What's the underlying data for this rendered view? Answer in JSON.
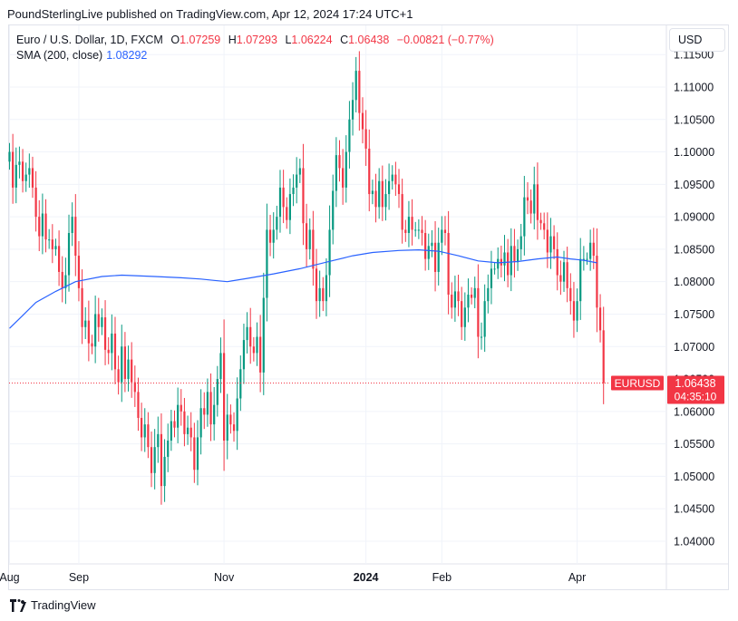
{
  "header": {
    "publisher_line": "PoundSterlingLive published on TradingView.com, Apr 12, 2024 17:24 UTC+1"
  },
  "legend": {
    "symbol": "Euro / U.S. Dollar, 1D, FXCM",
    "o_label": "O",
    "o_value": "1.07259",
    "h_label": "H",
    "h_value": "1.07293",
    "l_label": "L",
    "l_value": "1.06224",
    "c_label": "C",
    "c_value": "1.06438",
    "change": "−0.00821 (−0.77%)",
    "sma_label": "SMA (200, close)",
    "sma_value": "1.08292"
  },
  "currency": "USD",
  "footer": {
    "brand": "TradingView"
  },
  "colors": {
    "up": "#089981",
    "down": "#f23645",
    "sma": "#2962ff",
    "grid": "#f0f3fa"
  },
  "chart_data": {
    "type": "candlestick",
    "symbol": "EURUSD",
    "ylim": [
      1.0365,
      1.1195
    ],
    "y_ticks": [
      1.04,
      1.045,
      1.05,
      1.055,
      1.06,
      1.065,
      1.07,
      1.075,
      1.08,
      1.085,
      1.09,
      1.095,
      1.1,
      1.105,
      1.11,
      1.115
    ],
    "y_tick_labels": [
      "1.04000",
      "1.04500",
      "1.05000",
      "1.05500",
      "1.06000",
      "1.06500",
      "1.07000",
      "1.07500",
      "1.08000",
      "1.08500",
      "1.09000",
      "1.09500",
      "1.10000",
      "1.10500",
      "1.11000",
      "1.11500"
    ],
    "x_ticks": [
      {
        "label": "Aug",
        "day": 0,
        "bold": false
      },
      {
        "label": "Sep",
        "day": 21,
        "bold": false
      },
      {
        "label": "Nov",
        "day": 65,
        "bold": false
      },
      {
        "label": "2024",
        "day": 108,
        "bold": true
      },
      {
        "label": "Feb",
        "day": 131,
        "bold": false
      },
      {
        "label": "Apr",
        "day": 172,
        "bold": false
      }
    ],
    "last_price": "1.06438",
    "last_price_value": 1.06438,
    "countdown": "04:35:10",
    "closes": [
      1.1,
      1.0945,
      1.098,
      1.0985,
      1.0955,
      1.0965,
      1.0975,
      1.0945,
      1.09,
      1.087,
      1.0905,
      1.0865,
      1.0865,
      1.085,
      1.0855,
      1.0815,
      1.079,
      1.081,
      1.0875,
      1.09,
      1.084,
      1.079,
      1.073,
      1.074,
      1.0705,
      1.07,
      1.075,
      1.073,
      1.0745,
      1.0695,
      1.069,
      1.072,
      1.0665,
      1.0645,
      1.07,
      1.065,
      1.068,
      1.0645,
      1.063,
      1.059,
      1.056,
      1.058,
      1.0545,
      1.0505,
      1.0545,
      1.0565,
      1.0485,
      1.053,
      1.0555,
      1.0585,
      1.0575,
      1.061,
      1.06,
      1.0565,
      1.0575,
      1.056,
      1.051,
      1.056,
      1.0605,
      1.0595,
      1.063,
      1.058,
      1.061,
      1.065,
      1.069,
      1.0555,
      1.0595,
      1.058,
      1.057,
      1.062,
      1.0665,
      1.071,
      1.073,
      1.07,
      1.069,
      1.0715,
      1.066,
      1.0775,
      1.088,
      1.086,
      1.088,
      1.09,
      1.0945,
      1.0915,
      1.0895,
      1.0935,
      1.0945,
      1.0965,
      1.0975,
      1.089,
      1.085,
      1.088,
      1.082,
      1.077,
      1.079,
      1.077,
      1.081,
      1.088,
      1.094,
      1.0995,
      1.0975,
      1.0945,
      1.1,
      1.105,
      1.108,
      1.1125,
      1.106,
      1.1035,
      1.1005,
      1.0935,
      1.094,
      1.0915,
      1.0955,
      1.0915,
      1.0935,
      1.0955,
      1.0965,
      1.095,
      1.0935,
      1.088,
      1.0875,
      1.09,
      1.088,
      1.088,
      1.088,
      1.0875,
      1.0835,
      1.0855,
      1.086,
      1.0815,
      1.086,
      1.088,
      1.0875,
      1.078,
      1.076,
      1.0785,
      1.077,
      1.073,
      1.076,
      1.078,
      1.0775,
      1.079,
      1.0715,
      1.0715,
      1.077,
      1.079,
      1.082,
      1.082,
      1.0835,
      1.0825,
      1.0845,
      1.081,
      1.0855,
      1.083,
      1.085,
      1.087,
      1.093,
      1.0925,
      1.0905,
      1.095,
      1.0895,
      1.089,
      1.088,
      1.0845,
      1.087,
      1.085,
      1.081,
      1.08,
      1.083,
      1.079,
      1.077,
      1.074,
      1.077,
      1.0835,
      1.0835,
      1.0835,
      1.086,
      1.084,
      1.076,
      1.0725,
      1.06438
    ],
    "sma_200": [
      [
        0,
        1.0728
      ],
      [
        4,
        1.0748
      ],
      [
        8,
        1.0768
      ],
      [
        14,
        1.0785
      ],
      [
        20,
        1.08
      ],
      [
        28,
        1.0808
      ],
      [
        34,
        1.081
      ],
      [
        44,
        1.0808
      ],
      [
        52,
        1.0806
      ],
      [
        58,
        1.0804
      ],
      [
        62,
        1.0802
      ],
      [
        66,
        1.08
      ],
      [
        72,
        1.0805
      ],
      [
        80,
        1.0812
      ],
      [
        88,
        1.082
      ],
      [
        96,
        1.083
      ],
      [
        104,
        1.084
      ],
      [
        110,
        1.0845
      ],
      [
        118,
        1.0848
      ],
      [
        124,
        1.0849
      ],
      [
        130,
        1.0847
      ],
      [
        136,
        1.084
      ],
      [
        142,
        1.0832
      ],
      [
        148,
        1.0829
      ],
      [
        154,
        1.0831
      ],
      [
        160,
        1.0835
      ],
      [
        166,
        1.0838
      ],
      [
        170,
        1.0835
      ],
      [
        174,
        1.0833
      ],
      [
        178,
        1.0829
      ]
    ]
  }
}
